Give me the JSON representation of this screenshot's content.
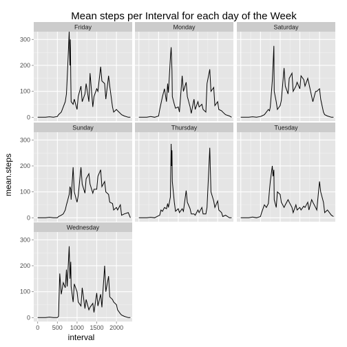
{
  "chart_data": {
    "type": "line",
    "title": "Mean steps per Interval for each day of the Week",
    "xlabel": "interval",
    "ylabel": "mean.steps",
    "xlim": [
      -100,
      2400
    ],
    "ylim": [
      -15,
      330
    ],
    "x_ticks": [
      0,
      500,
      1000,
      1500,
      2000
    ],
    "y_ticks": [
      0,
      100,
      200,
      300
    ],
    "grid": true,
    "layout": "facet_wrap 3 columns",
    "colors": {
      "panel_bg": "#e5e5e5",
      "grid_major": "#ffffff",
      "grid_minor": "#f2f2f2",
      "strip_bg": "#cccccc",
      "line": "#000000",
      "tick_text": "#4d4d4d"
    },
    "series": [
      {
        "name": "Friday",
        "x": [
          0,
          100,
          200,
          300,
          400,
          500,
          530,
          600,
          650,
          700,
          730,
          750,
          800,
          810,
          820,
          830,
          840,
          850,
          900,
          930,
          1000,
          1030,
          1100,
          1130,
          1200,
          1230,
          1300,
          1330,
          1400,
          1430,
          1500,
          1530,
          1600,
          1630,
          1700,
          1730,
          1800,
          1830,
          1900,
          1930,
          2000,
          2030,
          2100,
          2130,
          2200,
          2300,
          2355
        ],
        "y": [
          0,
          0,
          0,
          2,
          0,
          3,
          10,
          20,
          40,
          60,
          90,
          150,
          330,
          250,
          200,
          300,
          150,
          60,
          50,
          70,
          30,
          80,
          120,
          60,
          90,
          130,
          60,
          170,
          40,
          80,
          110,
          100,
          195,
          140,
          130,
          70,
          160,
          120,
          40,
          20,
          30,
          25,
          15,
          10,
          5,
          0,
          0
        ]
      },
      {
        "name": "Monday",
        "x": [
          0,
          100,
          200,
          300,
          400,
          500,
          530,
          600,
          650,
          700,
          730,
          750,
          800,
          820,
          840,
          850,
          900,
          930,
          1000,
          1030,
          1100,
          1130,
          1200,
          1230,
          1300,
          1330,
          1400,
          1430,
          1500,
          1530,
          1600,
          1630,
          1700,
          1730,
          1800,
          1830,
          1900,
          1930,
          2000,
          2030,
          2100,
          2130,
          2200,
          2300,
          2355
        ],
        "y": [
          0,
          0,
          0,
          3,
          0,
          5,
          30,
          80,
          110,
          60,
          130,
          95,
          230,
          270,
          180,
          80,
          50,
          35,
          40,
          20,
          160,
          100,
          135,
          80,
          40,
          15,
          70,
          30,
          60,
          40,
          50,
          30,
          20,
          130,
          185,
          100,
          115,
          45,
          60,
          30,
          25,
          20,
          10,
          5,
          0
        ]
      },
      {
        "name": "Saturday",
        "x": [
          0,
          100,
          200,
          300,
          400,
          500,
          530,
          600,
          650,
          700,
          730,
          750,
          800,
          820,
          840,
          850,
          900,
          930,
          1000,
          1030,
          1100,
          1130,
          1200,
          1230,
          1300,
          1330,
          1400,
          1430,
          1500,
          1530,
          1600,
          1630,
          1700,
          1730,
          1800,
          1830,
          1900,
          1930,
          2000,
          2030,
          2100,
          2130,
          2200,
          2300,
          2355
        ],
        "y": [
          0,
          0,
          0,
          2,
          0,
          3,
          5,
          10,
          20,
          30,
          25,
          40,
          140,
          200,
          275,
          100,
          60,
          30,
          45,
          65,
          190,
          120,
          90,
          150,
          170,
          100,
          120,
          135,
          110,
          160,
          145,
          120,
          150,
          130,
          80,
          60,
          100,
          100,
          110,
          70,
          20,
          10,
          5,
          0,
          0
        ]
      },
      {
        "name": "Sunday",
        "x": [
          0,
          100,
          200,
          300,
          400,
          500,
          530,
          600,
          650,
          700,
          730,
          750,
          800,
          820,
          840,
          850,
          900,
          930,
          1000,
          1030,
          1100,
          1130,
          1200,
          1230,
          1300,
          1330,
          1400,
          1430,
          1500,
          1530,
          1600,
          1630,
          1700,
          1730,
          1800,
          1830,
          1900,
          1930,
          2000,
          2030,
          2100,
          2130,
          2200,
          2300,
          2355
        ],
        "y": [
          0,
          0,
          0,
          2,
          0,
          0,
          5,
          10,
          15,
          30,
          50,
          60,
          90,
          120,
          110,
          70,
          195,
          100,
          60,
          85,
          195,
          130,
          95,
          150,
          170,
          130,
          95,
          110,
          110,
          160,
          185,
          120,
          140,
          100,
          90,
          60,
          55,
          30,
          40,
          30,
          50,
          10,
          15,
          20,
          0
        ]
      },
      {
        "name": "Thursday",
        "x": [
          0,
          100,
          200,
          300,
          400,
          500,
          530,
          560,
          600,
          650,
          700,
          730,
          750,
          800,
          820,
          830,
          840,
          850,
          900,
          930,
          1000,
          1030,
          1100,
          1130,
          1200,
          1230,
          1300,
          1330,
          1400,
          1430,
          1500,
          1530,
          1600,
          1630,
          1700,
          1730,
          1800,
          1830,
          1900,
          1930,
          2000,
          2030,
          2100,
          2130,
          2200,
          2300,
          2355
        ],
        "y": [
          0,
          0,
          0,
          2,
          0,
          8,
          10,
          30,
          25,
          40,
          35,
          55,
          40,
          80,
          285,
          200,
          260,
          140,
          60,
          25,
          35,
          20,
          35,
          25,
          105,
          60,
          35,
          15,
          15,
          10,
          30,
          20,
          40,
          15,
          15,
          40,
          270,
          100,
          65,
          40,
          65,
          30,
          20,
          5,
          10,
          0,
          0
        ]
      },
      {
        "name": "Tuesday",
        "x": [
          0,
          100,
          200,
          300,
          400,
          500,
          530,
          600,
          650,
          700,
          730,
          750,
          800,
          820,
          840,
          850,
          900,
          930,
          1000,
          1030,
          1100,
          1130,
          1200,
          1230,
          1300,
          1330,
          1400,
          1430,
          1500,
          1530,
          1600,
          1630,
          1700,
          1730,
          1800,
          1830,
          1900,
          1930,
          2000,
          2030,
          2100,
          2130,
          2200,
          2300,
          2355
        ],
        "y": [
          0,
          0,
          0,
          3,
          0,
          5,
          20,
          50,
          40,
          55,
          110,
          140,
          200,
          160,
          185,
          70,
          40,
          100,
          90,
          60,
          40,
          50,
          70,
          60,
          40,
          20,
          50,
          30,
          40,
          30,
          45,
          40,
          60,
          30,
          70,
          60,
          40,
          30,
          140,
          100,
          60,
          20,
          30,
          10,
          5
        ]
      },
      {
        "name": "Wednesday",
        "x": [
          0,
          100,
          200,
          300,
          400,
          500,
          530,
          560,
          600,
          650,
          700,
          730,
          750,
          800,
          820,
          840,
          850,
          900,
          930,
          1000,
          1030,
          1100,
          1130,
          1200,
          1230,
          1300,
          1330,
          1400,
          1430,
          1500,
          1530,
          1600,
          1630,
          1700,
          1730,
          1800,
          1830,
          1900,
          1930,
          2000,
          2030,
          2100,
          2130,
          2200,
          2300,
          2355
        ],
        "y": [
          0,
          0,
          0,
          2,
          0,
          0,
          5,
          170,
          90,
          135,
          115,
          185,
          120,
          275,
          150,
          215,
          120,
          60,
          130,
          100,
          60,
          45,
          115,
          35,
          70,
          30,
          40,
          55,
          20,
          95,
          45,
          90,
          40,
          200,
          100,
          160,
          80,
          70,
          60,
          50,
          30,
          15,
          10,
          5,
          0,
          0
        ]
      }
    ]
  }
}
